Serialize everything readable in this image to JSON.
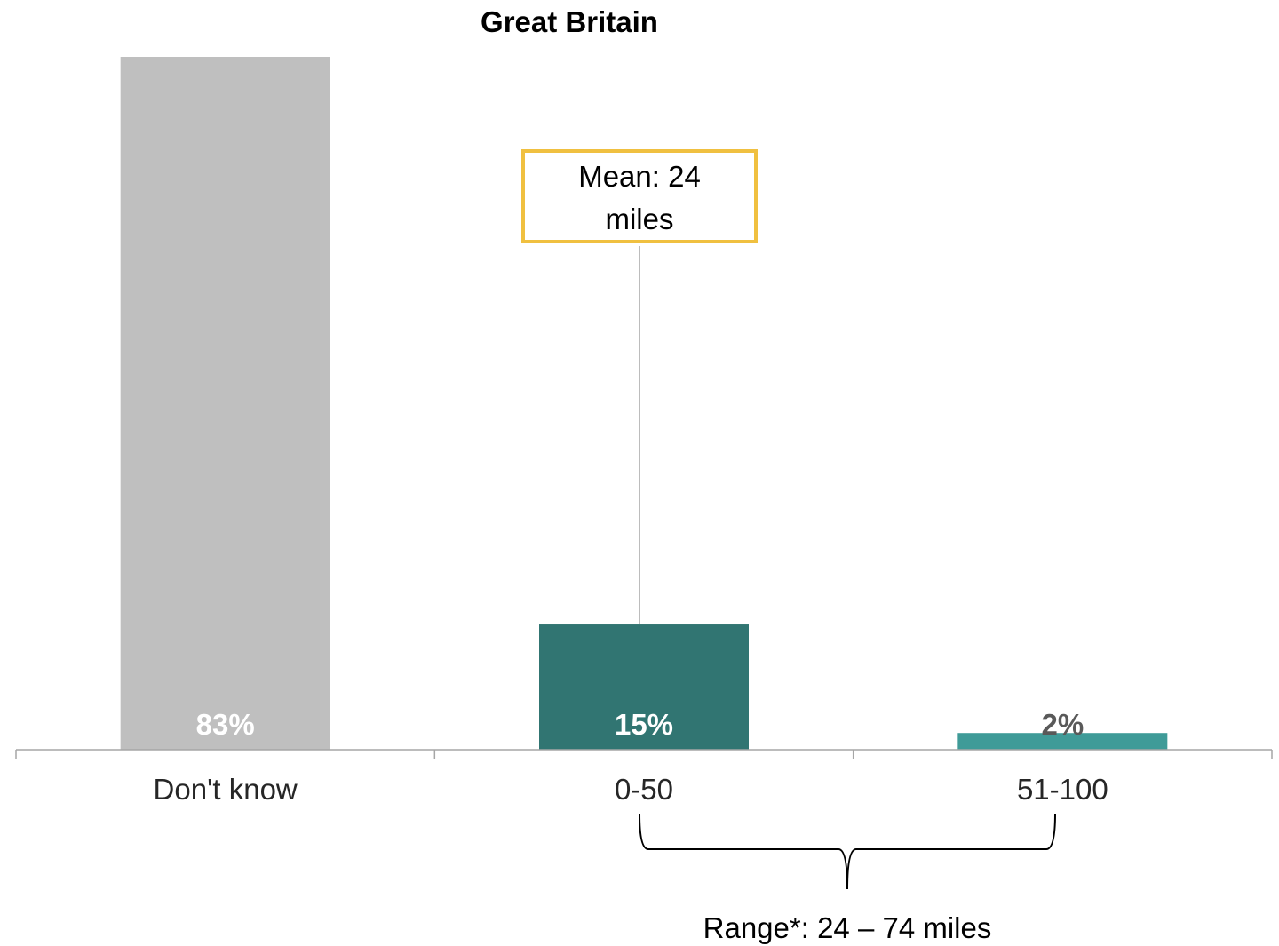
{
  "chart_data": {
    "type": "bar",
    "title": "Great Britain",
    "categories": [
      "Don't know",
      "0-50",
      "51-100"
    ],
    "values": [
      83,
      15,
      2
    ],
    "value_labels": [
      "83%",
      "15%",
      "2%"
    ],
    "ylim": [
      0,
      83
    ],
    "grid": false,
    "colors": {
      "bars": [
        "#bfbfbf",
        "#317572",
        "#3f9b98"
      ],
      "value_labels": [
        "#ffffff",
        "#ffffff",
        "#595959"
      ],
      "axis": "#a6a6a6",
      "callout_border": "#f0c040",
      "callout_leader": "#a6a6a6",
      "brace": "#000000"
    },
    "annotations": {
      "mean_callout": {
        "line1": "Mean: 24",
        "line2": "miles"
      },
      "range_brace": {
        "text": "Range*: 24 – 74 miles"
      }
    }
  }
}
